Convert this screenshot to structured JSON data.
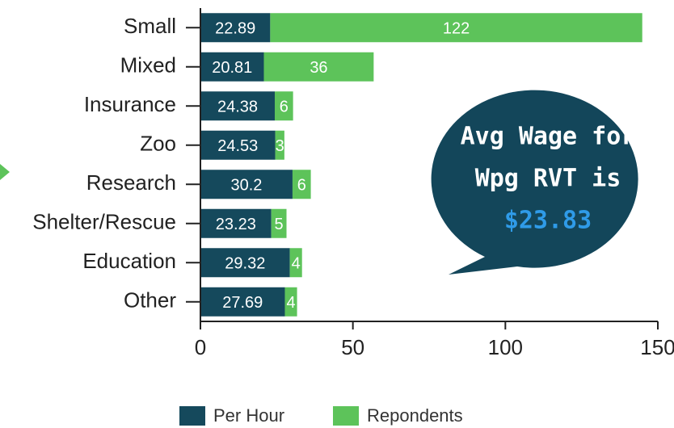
{
  "chart_data": {
    "type": "stacked_barh",
    "categories": [
      "Small",
      "Mixed",
      "Insurance",
      "Zoo",
      "Research",
      "Shelter/Rescue",
      "Education",
      "Other"
    ],
    "series": [
      {
        "name": "Per Hour",
        "color": "#15495c",
        "values": [
          22.89,
          20.81,
          24.38,
          24.53,
          30.2,
          23.23,
          29.32,
          27.69
        ]
      },
      {
        "name": "Repondents",
        "color": "#5dc35a",
        "values": [
          122,
          36,
          6,
          3,
          6,
          5,
          4,
          4
        ]
      }
    ],
    "xlim": [
      0,
      150
    ],
    "xticks": [
      0,
      50,
      100,
      150
    ],
    "legend": "bottom",
    "annotation": {
      "lines": [
        "Avg  Wage for",
        "Wpg RVT is",
        "$23.83"
      ],
      "color": "#13465a",
      "highlight_color": "#2f9be8"
    }
  }
}
